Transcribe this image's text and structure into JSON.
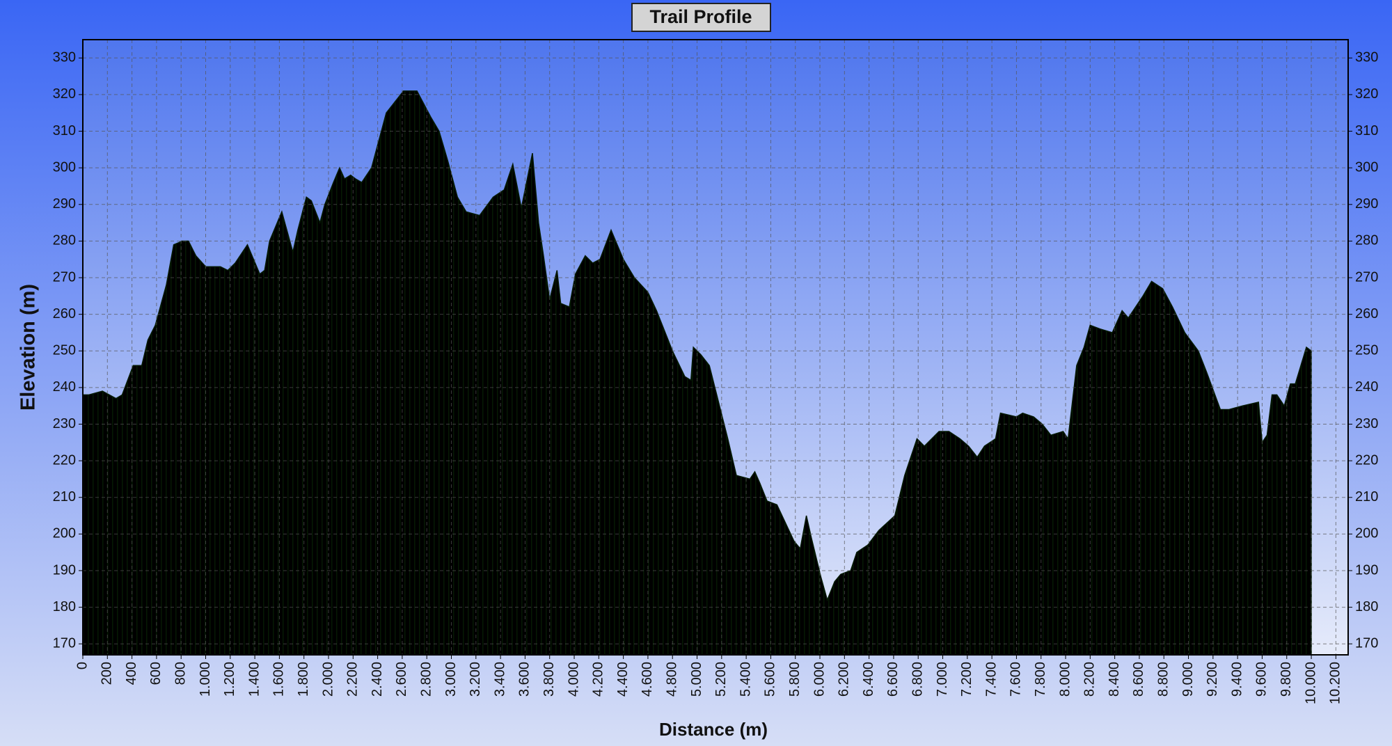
{
  "chart_data": {
    "type": "area",
    "title": "Trail Profile",
    "xlabel": "Distance (m)",
    "ylabel": "Elevation (m)",
    "color": "#17460f",
    "x": [
      0,
      50,
      160,
      270,
      320,
      410,
      480,
      530,
      590,
      680,
      740,
      810,
      860,
      920,
      1000,
      1120,
      1180,
      1240,
      1340,
      1440,
      1480,
      1520,
      1620,
      1710,
      1750,
      1820,
      1860,
      1930,
      1970,
      2040,
      2090,
      2130,
      2180,
      2220,
      2270,
      2350,
      2470,
      2610,
      2720,
      2830,
      2900,
      2970,
      3050,
      3120,
      3230,
      3340,
      3430,
      3500,
      3570,
      3660,
      3710,
      3750,
      3800,
      3860,
      3890,
      3960,
      4010,
      4090,
      4150,
      4210,
      4300,
      4350,
      4400,
      4490,
      4600,
      4670,
      4800,
      4900,
      4950,
      4970,
      5030,
      5100,
      5160,
      5250,
      5320,
      5430,
      5470,
      5510,
      5570,
      5650,
      5720,
      5790,
      5840,
      5890,
      5930,
      6010,
      6060,
      6120,
      6170,
      6250,
      6300,
      6390,
      6480,
      6610,
      6690,
      6790,
      6850,
      6970,
      7050,
      7140,
      7210,
      7280,
      7340,
      7430,
      7470,
      7600,
      7650,
      7740,
      7810,
      7880,
      7980,
      8020,
      8090,
      8150,
      8200,
      8280,
      8380,
      8460,
      8510,
      8630,
      8700,
      8790,
      8870,
      8970,
      9080,
      9150,
      9260,
      9330,
      9440,
      9570,
      9600,
      9640,
      9680,
      9720,
      9780,
      9830,
      9870,
      9960,
      10000
    ],
    "values": [
      238,
      238,
      239,
      237,
      238,
      246,
      246,
      253,
      257,
      268,
      279,
      280,
      280,
      276,
      273,
      273,
      272,
      274,
      279,
      271,
      272,
      280,
      288,
      277,
      283,
      292,
      291,
      285,
      290,
      296,
      300,
      297,
      298,
      297,
      296,
      300,
      315,
      321,
      321,
      314,
      310,
      302,
      292,
      288,
      287,
      292,
      294,
      301,
      289,
      304,
      285,
      276,
      264,
      272,
      263,
      262,
      271,
      276,
      274,
      275,
      283,
      279,
      275,
      270,
      266,
      261,
      250,
      243,
      242,
      251,
      249,
      246,
      238,
      226,
      216,
      215,
      217,
      214,
      209,
      208,
      203,
      198,
      196,
      205,
      199,
      188,
      182,
      187,
      189,
      190,
      195,
      197,
      201,
      205,
      216,
      226,
      224,
      228,
      228,
      226,
      224,
      221,
      224,
      226,
      233,
      232,
      233,
      232,
      230,
      227,
      228,
      226,
      246,
      251,
      257,
      256,
      255,
      261,
      259,
      265,
      269,
      267,
      262,
      255,
      250,
      244,
      234,
      234,
      235,
      236,
      225,
      227,
      238,
      238,
      235,
      241,
      241,
      251,
      250
    ],
    "xlim": [
      0,
      10300
    ],
    "ylim": [
      167,
      335
    ],
    "xticks": [
      0,
      200,
      400,
      600,
      800,
      {
        "value": 1000,
        "label": "1.000"
      },
      {
        "value": 1200,
        "label": "1.200"
      },
      {
        "value": 1400,
        "label": "1.400"
      },
      {
        "value": 1600,
        "label": "1.600"
      },
      {
        "value": 1800,
        "label": "1.800"
      },
      {
        "value": 2000,
        "label": "2.000"
      },
      {
        "value": 2200,
        "label": "2.200"
      },
      {
        "value": 2400,
        "label": "2.400"
      },
      {
        "value": 2600,
        "label": "2.600"
      },
      {
        "value": 2800,
        "label": "2.800"
      },
      {
        "value": 3000,
        "label": "3.000"
      },
      {
        "value": 3200,
        "label": "3.200"
      },
      {
        "value": 3400,
        "label": "3.400"
      },
      {
        "value": 3600,
        "label": "3.600"
      },
      {
        "value": 3800,
        "label": "3.800"
      },
      {
        "value": 4000,
        "label": "4.000"
      },
      {
        "value": 4200,
        "label": "4.200"
      },
      {
        "value": 4400,
        "label": "4.400"
      },
      {
        "value": 4600,
        "label": "4.600"
      },
      {
        "value": 4800,
        "label": "4.800"
      },
      {
        "value": 5000,
        "label": "5.000"
      },
      {
        "value": 5200,
        "label": "5.200"
      },
      {
        "value": 5400,
        "label": "5.400"
      },
      {
        "value": 5600,
        "label": "5.600"
      },
      {
        "value": 5800,
        "label": "5.800"
      },
      {
        "value": 6000,
        "label": "6.000"
      },
      {
        "value": 6200,
        "label": "6.200"
      },
      {
        "value": 6400,
        "label": "6.400"
      },
      {
        "value": 6600,
        "label": "6.600"
      },
      {
        "value": 6800,
        "label": "6.800"
      },
      {
        "value": 7000,
        "label": "7.000"
      },
      {
        "value": 7200,
        "label": "7.200"
      },
      {
        "value": 7400,
        "label": "7.400"
      },
      {
        "value": 7600,
        "label": "7.600"
      },
      {
        "value": 7800,
        "label": "7.800"
      },
      {
        "value": 8000,
        "label": "8.000"
      },
      {
        "value": 8200,
        "label": "8.200"
      },
      {
        "value": 8400,
        "label": "8.400"
      },
      {
        "value": 8600,
        "label": "8.600"
      },
      {
        "value": 8800,
        "label": "8.800"
      },
      {
        "value": 9000,
        "label": "9.000"
      },
      {
        "value": 9200,
        "label": "9.200"
      },
      {
        "value": 9400,
        "label": "9.400"
      },
      {
        "value": 9600,
        "label": "9.600"
      },
      {
        "value": 9800,
        "label": "9.800"
      },
      {
        "value": 10000,
        "label": "10.000"
      },
      {
        "value": 10200,
        "label": "10.200"
      }
    ],
    "yticks": [
      170,
      180,
      190,
      200,
      210,
      220,
      230,
      240,
      250,
      260,
      270,
      280,
      290,
      300,
      310,
      320,
      330
    ],
    "grid": true
  }
}
